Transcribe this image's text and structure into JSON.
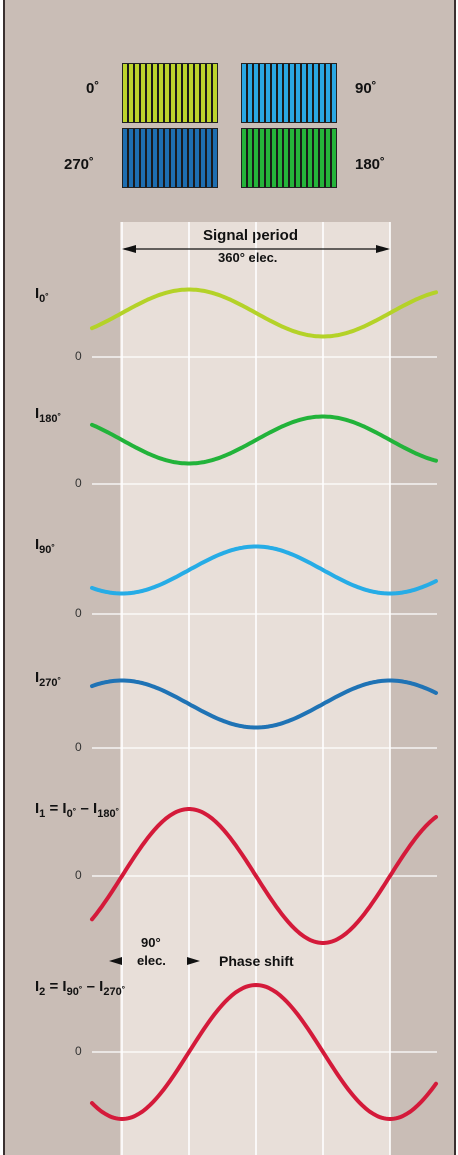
{
  "gratings": [
    {
      "label": "0˚",
      "color": "#bcd42c"
    },
    {
      "label": "90˚",
      "color": "#2aa7e2"
    },
    {
      "label": "270˚",
      "color": "#1e6eb0"
    },
    {
      "label": "180˚",
      "color": "#25b43a"
    }
  ],
  "signal_period": {
    "title": "Signal period",
    "subtitle": "360° elec."
  },
  "signals": [
    {
      "name": "I",
      "sub": "0˚",
      "color": "#b4d228"
    },
    {
      "name": "I",
      "sub": "180˚",
      "color": "#22b33a"
    },
    {
      "name": "I",
      "sub": "90˚",
      "color": "#26ace6"
    },
    {
      "name": "I",
      "sub": "270˚",
      "color": "#1f73b5"
    },
    {
      "name": "I",
      "sub": "1",
      "rhs": "I",
      "rhs_sub1": "0˚",
      "minus": "–",
      "rhs2": "I",
      "rhs_sub2": "180˚",
      "color": "#d41a3a"
    },
    {
      "name": "I",
      "sub": "2",
      "rhs": "I",
      "rhs_sub1": "90˚",
      "minus": "–",
      "rhs2": "I",
      "rhs_sub2": "270˚",
      "color": "#d41a3a"
    }
  ],
  "zero_label": "0",
  "phase_shift": {
    "amount": "90°",
    "unit": "elec.",
    "label": "Phase shift"
  },
  "chart_data": {
    "type": "line",
    "x_period_deg": 360,
    "series": [
      {
        "name": "I0˚",
        "phase_deg": 0,
        "offset": 1,
        "amplitude": 1
      },
      {
        "name": "I180˚",
        "phase_deg": 180,
        "offset": 1,
        "amplitude": 1
      },
      {
        "name": "I90˚",
        "phase_deg": 90,
        "offset": 1,
        "amplitude": 1
      },
      {
        "name": "I270˚",
        "phase_deg": 270,
        "offset": 1,
        "amplitude": 1
      },
      {
        "name": "I1 = I0˚ – I180˚",
        "phase_deg": 0,
        "offset": 0,
        "amplitude": 2
      },
      {
        "name": "I2 = I90˚ – I270˚",
        "phase_deg": 90,
        "offset": 0,
        "amplitude": 2
      }
    ]
  }
}
